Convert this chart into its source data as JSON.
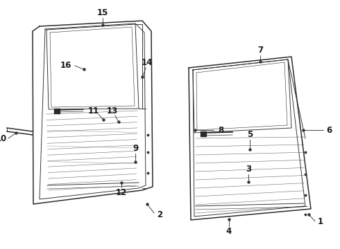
{
  "bg_color": "#ffffff",
  "line_color": "#2a2a2a",
  "label_color": "#1a1a1a",
  "dot_color": "#333333",
  "fig_width": 4.9,
  "fig_height": 3.6,
  "dpi": 100,
  "label_fontsize": 8.5
}
